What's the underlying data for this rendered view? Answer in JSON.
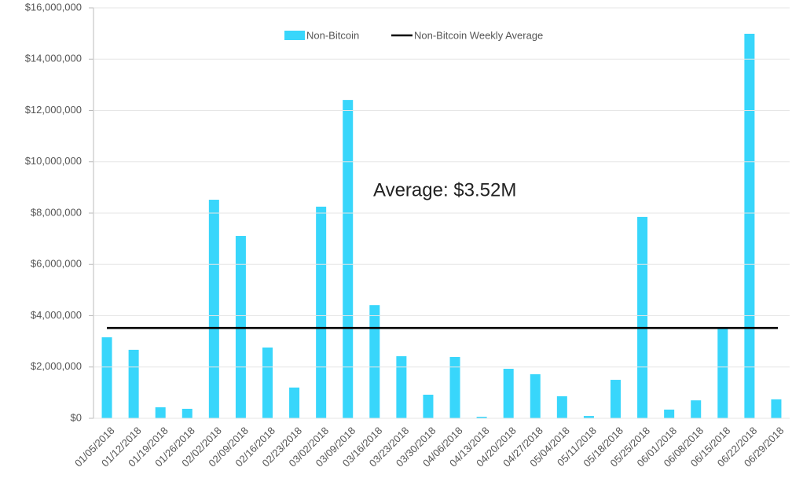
{
  "chart_data": {
    "type": "bar",
    "categories": [
      "01/05/2018",
      "01/12/2018",
      "01/19/2018",
      "01/26/2018",
      "02/02/2018",
      "02/09/2018",
      "02/16/2018",
      "02/23/2018",
      "03/02/2018",
      "03/09/2018",
      "03/16/2018",
      "03/23/2018",
      "03/30/2018",
      "04/06/2018",
      "04/13/2018",
      "04/20/2018",
      "04/27/2018",
      "05/04/2018",
      "05/11/2018",
      "05/18/2018",
      "05/25/2018",
      "06/01/2018",
      "06/08/2018",
      "06/15/2018",
      "06/22/2018",
      "06/29/2018"
    ],
    "series": [
      {
        "name": "Non-Bitcoin",
        "color": "#38d6fb",
        "values": [
          3160000,
          2670000,
          430000,
          370000,
          8520000,
          7110000,
          2760000,
          1200000,
          8250000,
          12410000,
          4410000,
          2420000,
          920000,
          2390000,
          60000,
          1930000,
          1720000,
          860000,
          90000,
          1500000,
          7850000,
          340000,
          700000,
          3490000,
          14990000,
          740000
        ]
      }
    ],
    "average": {
      "name": "Non-Bitcoin Weekly Average",
      "color": "#000000",
      "value": 3520000
    },
    "annotation": "Average: $3.52M",
    "ylim": [
      0,
      16000000
    ],
    "yticks": [
      {
        "value": 0,
        "label": "$0"
      },
      {
        "value": 2000000,
        "label": "$2,000,000"
      },
      {
        "value": 4000000,
        "label": "$4,000,000"
      },
      {
        "value": 6000000,
        "label": "$6,000,000"
      },
      {
        "value": 8000000,
        "label": "$8,000,000"
      },
      {
        "value": 10000000,
        "label": "$10,000,000"
      },
      {
        "value": 12000000,
        "label": "$12,000,000"
      },
      {
        "value": 14000000,
        "label": "$14,000,000"
      },
      {
        "value": 16000000,
        "label": "$16,000,000"
      }
    ],
    "grid": true
  }
}
